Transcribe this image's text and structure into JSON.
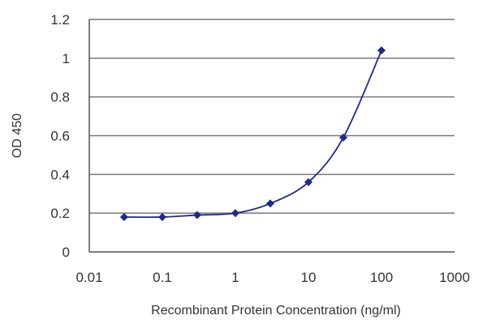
{
  "chart_data": {
    "type": "line",
    "title": "",
    "xlabel": "Recombinant Protein Concentration (ng/ml)",
    "ylabel": "OD 450",
    "x_scale": "log",
    "xlim": [
      0.01,
      1000
    ],
    "ylim": [
      0,
      1.2
    ],
    "x_ticks": [
      "0.01",
      "0.1",
      "1",
      "10",
      "100",
      "1000"
    ],
    "y_ticks": [
      "0",
      "0.2",
      "0.4",
      "0.6",
      "0.8",
      "1",
      "1.2"
    ],
    "grid": "horizontal",
    "legend": "none",
    "series": [
      {
        "color": "#1f2a8c",
        "marker": "diamond",
        "x": [
          0.03,
          0.1,
          0.3,
          1,
          3,
          10,
          30,
          100
        ],
        "y": [
          0.18,
          0.18,
          0.19,
          0.2,
          0.25,
          0.36,
          0.59,
          1.04
        ]
      }
    ]
  }
}
